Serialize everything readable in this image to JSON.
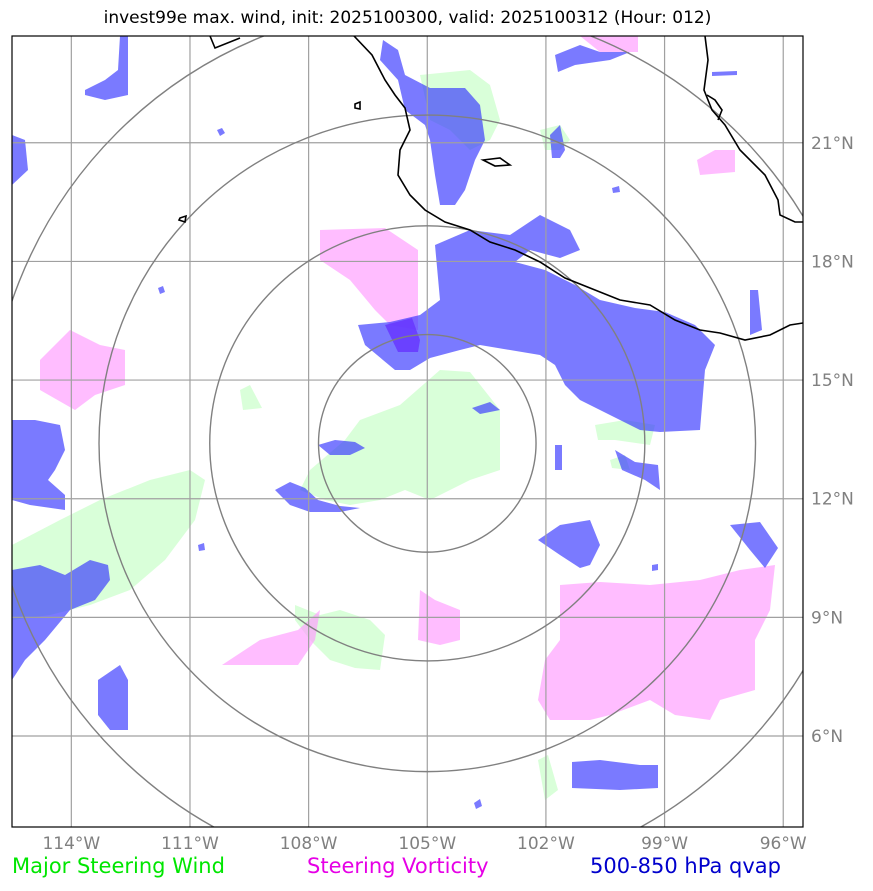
{
  "title": "invest99e max. wind, init: 2025100300, valid: 2025100312 (Hour: 012)",
  "legend": {
    "wind": "Major Steering Wind",
    "vorticity": "Steering Vorticity",
    "qvap": "500-850 hPa qvap"
  },
  "colors": {
    "wind": "#ccffcc",
    "vorticity": "#ff99ff",
    "qvap": "#3333ff",
    "grid": "#a0a0a0",
    "rings": "#808080",
    "coast": "#000000"
  },
  "map": {
    "lon_range": [
      -115.5,
      -95.5
    ],
    "lat_range": [
      3.7,
      23.7
    ],
    "center": {
      "lon": -105.0,
      "lat": 13.4
    },
    "ring_radii_deg": [
      2.75,
      5.5,
      8.3,
      11.1
    ]
  },
  "axes": {
    "lon_ticks": [
      {
        "value": -114,
        "label": "114°W"
      },
      {
        "value": -111,
        "label": "111°W"
      },
      {
        "value": -108,
        "label": "108°W"
      },
      {
        "value": -105,
        "label": "105°W"
      },
      {
        "value": -102,
        "label": "102°W"
      },
      {
        "value": -99,
        "label": "99°W"
      },
      {
        "value": -96,
        "label": "96°W"
      }
    ],
    "lat_ticks": [
      {
        "value": 21,
        "label": "21°N"
      },
      {
        "value": 18,
        "label": "18°N"
      },
      {
        "value": 15,
        "label": "15°N"
      },
      {
        "value": 12,
        "label": "12°N"
      },
      {
        "value": 9,
        "label": "9°N"
      },
      {
        "value": 6,
        "label": "6°N"
      }
    ]
  }
}
